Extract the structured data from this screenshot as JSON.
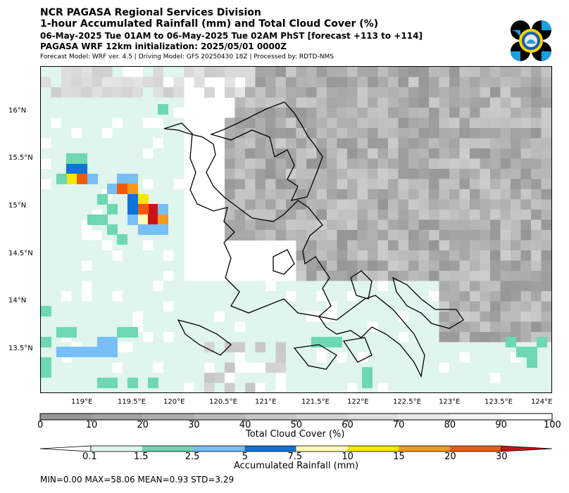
{
  "header": {
    "title": "NCR PAGASA Regional Services Division",
    "subtitle": "1-hour Accumulated Rainfall (mm) and Total Cloud Cover (%)",
    "valid_time": "06-May-2025 Tue 01AM to 06-May-2025 Tue 02AM PhST [forecast +113 to +114]",
    "initialization": "PAGASA WRF 12km initialization: 2025/05/01 0000Z",
    "model_info": "Forecast Model: WRF ver. 4.5 | Driving Model: GFS 20250430 18Z | Processed by: RDTD-NMS"
  },
  "logo": {
    "icon": "pagasa-logo-icon"
  },
  "map": {
    "lon_ticks": [
      "119°E",
      "119.5°E",
      "120°E",
      "120.5°E",
      "121°E",
      "121.5°E",
      "122°E",
      "122.5°E",
      "123°E",
      "123.5°E",
      "124°E"
    ],
    "lat_ticks": [
      "16°N",
      "15.5°N",
      "15°N",
      "14.5°N",
      "14°N",
      "13.5°N"
    ]
  },
  "cloud_colorbar": {
    "label": "Total Cloud Cover (%)",
    "ticks": [
      "0",
      "10",
      "20",
      "30",
      "40",
      "50",
      "60",
      "70",
      "80",
      "90",
      "100"
    ],
    "colors": [
      "#969696",
      "#a2a2a2",
      "#aeaeae",
      "#bababa",
      "#c6c6c6",
      "#d2d2d2",
      "#dedede",
      "#e9e9e9",
      "#f4f4f4",
      "#ffffff"
    ]
  },
  "rain_colorbar": {
    "label": "Accumulated Rainfall (mm)",
    "ticks": [
      "0.1",
      "1.5",
      "2.5",
      "5",
      "7.5",
      "10",
      "15",
      "20",
      "30"
    ],
    "colors": [
      "#ffffff",
      "#dff5ee",
      "#6dd8b2",
      "#78bff7",
      "#0a74d8",
      "#fefeb4",
      "#f9e50a",
      "#f59a1c",
      "#f05a0e",
      "#c81418"
    ]
  },
  "stats": "MIN=0.00   MAX=58.06   MEAN=0.93   STD=3.29"
}
